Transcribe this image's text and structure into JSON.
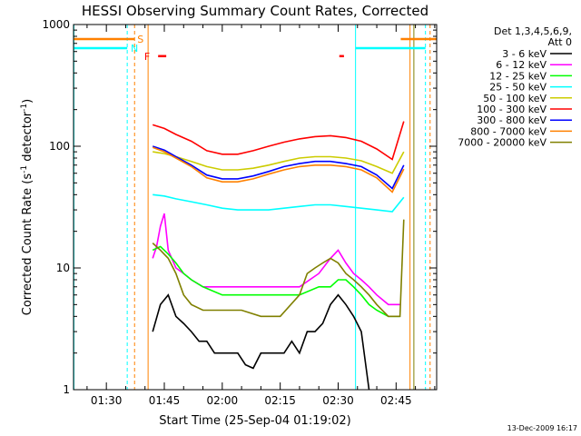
{
  "chart_data": {
    "type": "line",
    "title": "HESSI Observing Summary Count Rates, Corrected",
    "xlabel": "Start Time (25-Sep-04 01:19:02)",
    "ylabel_main": "Corrected Count Rate (s",
    "ylabel_sup1": "-1",
    "ylabel_mid": " detector",
    "ylabel_sup2": "-1",
    "ylabel_end": ")",
    "y_scale": "log",
    "ylim": [
      1,
      1000
    ],
    "xlim_minutes": [
      81.5,
      175.5
    ],
    "x_ticks": [
      {
        "label": "01:30",
        "minute": 90
      },
      {
        "label": "01:45",
        "minute": 105
      },
      {
        "label": "02:00",
        "minute": 120
      },
      {
        "label": "02:15",
        "minute": 135
      },
      {
        "label": "02:30",
        "minute": 150
      },
      {
        "label": "02:45",
        "minute": 165
      }
    ],
    "y_ticks": [
      {
        "label": "1",
        "value": 1
      },
      {
        "label": "10",
        "value": 10
      },
      {
        "label": "100",
        "value": 100
      },
      {
        "label": "1000",
        "value": 1000
      }
    ],
    "legend_header": [
      "Det 1,3,4,5,6,9,",
      "Att 0"
    ],
    "legend_position": "right",
    "series": [
      {
        "name": "3 - 6 keV",
        "color": "#000000",
        "x": [
          102,
          104,
          106,
          108,
          110,
          112,
          114,
          116,
          118,
          120,
          122,
          124,
          126,
          128,
          130,
          132,
          134,
          136,
          138,
          140,
          142,
          144,
          146,
          148,
          150,
          152,
          154,
          156,
          158
        ],
        "y": [
          3,
          5,
          6,
          4,
          3.5,
          3,
          2.5,
          2.5,
          2,
          2,
          2,
          2,
          1.6,
          1.5,
          2,
          2,
          2,
          2,
          2.5,
          2,
          3,
          3,
          3.5,
          5,
          6,
          5,
          4,
          3,
          1
        ]
      },
      {
        "name": "6 - 12 keV",
        "color": "#ff00ff",
        "x": [
          102,
          103,
          104,
          105,
          106,
          108,
          110,
          112,
          115,
          120,
          125,
          130,
          135,
          140,
          145,
          148,
          150,
          152,
          154,
          156,
          158,
          160,
          163,
          166
        ],
        "y": [
          12,
          15,
          22,
          28,
          14,
          10,
          9,
          8,
          7,
          7,
          7,
          7,
          7,
          7,
          9,
          12,
          14,
          11,
          9,
          8,
          7,
          6,
          5,
          5
        ]
      },
      {
        "name": "12 - 25 keV",
        "color": "#00ff00",
        "x": [
          102,
          104,
          106,
          108,
          110,
          112,
          115,
          120,
          125,
          130,
          135,
          140,
          145,
          148,
          150,
          152,
          154,
          156,
          158,
          160,
          163,
          166
        ],
        "y": [
          14,
          15,
          13,
          11,
          9,
          8,
          7,
          6,
          6,
          6,
          6,
          6,
          7,
          7,
          8,
          8,
          7,
          6,
          5,
          4.5,
          4,
          4
        ]
      },
      {
        "name": "25 - 50 keV",
        "color": "#00ffff",
        "x": [
          102,
          105,
          108,
          112,
          116,
          120,
          124,
          128,
          132,
          136,
          140,
          144,
          148,
          152,
          156,
          160,
          164,
          167
        ],
        "y": [
          40,
          39,
          37,
          35,
          33,
          31,
          30,
          30,
          30,
          31,
          32,
          33,
          33,
          32,
          31,
          30,
          29,
          38
        ]
      },
      {
        "name": "50 - 100 keV",
        "color": "#cccc00",
        "x": [
          102,
          105,
          108,
          112,
          116,
          120,
          124,
          128,
          132,
          136,
          140,
          144,
          148,
          152,
          156,
          160,
          164,
          167
        ],
        "y": [
          90,
          87,
          82,
          75,
          68,
          64,
          64,
          66,
          70,
          75,
          80,
          82,
          82,
          80,
          76,
          68,
          60,
          90
        ]
      },
      {
        "name": "100 - 300 keV",
        "color": "#ff0000",
        "x": [
          102,
          105,
          108,
          112,
          116,
          120,
          124,
          128,
          132,
          136,
          140,
          144,
          148,
          152,
          156,
          160,
          164,
          167
        ],
        "y": [
          150,
          140,
          125,
          110,
          92,
          86,
          86,
          92,
          100,
          108,
          115,
          120,
          122,
          118,
          110,
          95,
          78,
          160
        ]
      },
      {
        "name": "300 - 800 keV",
        "color": "#0000ff",
        "x": [
          102,
          105,
          108,
          112,
          116,
          120,
          124,
          128,
          132,
          136,
          140,
          144,
          148,
          152,
          156,
          160,
          164,
          167
        ],
        "y": [
          100,
          93,
          82,
          70,
          58,
          54,
          54,
          57,
          62,
          68,
          72,
          75,
          75,
          72,
          68,
          58,
          45,
          70
        ]
      },
      {
        "name": "800 - 7000 keV",
        "color": "#ff8000",
        "x": [
          102,
          105,
          108,
          112,
          116,
          120,
          124,
          128,
          132,
          136,
          140,
          144,
          148,
          152,
          156,
          160,
          164,
          167
        ],
        "y": [
          98,
          90,
          80,
          68,
          55,
          51,
          51,
          54,
          59,
          64,
          68,
          70,
          70,
          68,
          64,
          55,
          42,
          65
        ]
      },
      {
        "name": "7000 - 20000 keV",
        "color": "#808000",
        "x": [
          102,
          104,
          106,
          108,
          110,
          112,
          115,
          120,
          125,
          130,
          135,
          140,
          142,
          144,
          146,
          148,
          150,
          152,
          154,
          156,
          158,
          160,
          163,
          166,
          167
        ],
        "y": [
          16,
          14,
          12,
          9,
          6,
          5,
          4.5,
          4.5,
          4.5,
          4,
          4,
          6,
          9,
          10,
          11,
          12,
          11,
          9,
          8,
          7,
          6,
          5,
          4,
          4,
          25
        ]
      }
    ],
    "flags": [
      {
        "label": "S",
        "color": "#ff8000",
        "level": 760
      },
      {
        "label": "N",
        "color": "#00ffff",
        "level": 640
      },
      {
        "label": "F",
        "color": "#ff0000",
        "level": 550
      }
    ],
    "footer_date": "13-Dec-2009 16:17"
  }
}
